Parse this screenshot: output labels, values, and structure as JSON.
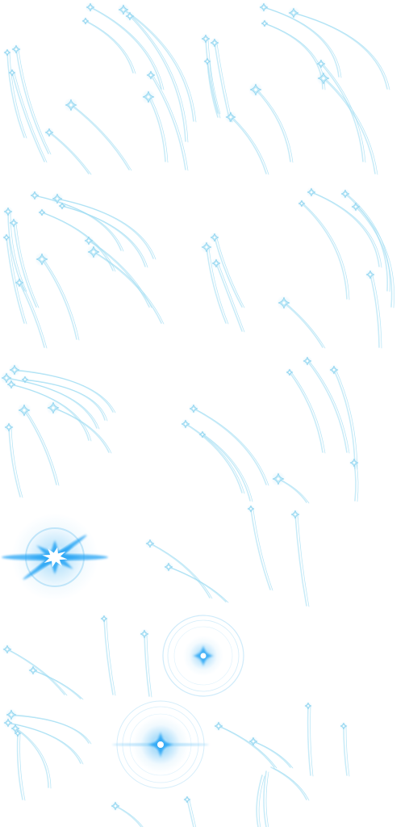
{
  "sheet": {
    "background": "#ffffff",
    "colors": {
      "trail": "#9edcf2",
      "sparkle": "#bfeaf8",
      "sparkle_core": "#ffffff",
      "burst": "#2fa8f5",
      "glow": "#7ccaf7",
      "ring": "#9fd7f5"
    },
    "sprites": [
      {
        "name": "meteor-shower-frame",
        "count": 6
      },
      {
        "name": "sparkle-trail-frame",
        "count": 6
      },
      {
        "name": "sparkle-trail-frame-dense",
        "count": 6
      },
      {
        "name": "light-burst-flash",
        "count": 1
      },
      {
        "name": "glow-ring-sparkle",
        "count": 2
      }
    ]
  }
}
